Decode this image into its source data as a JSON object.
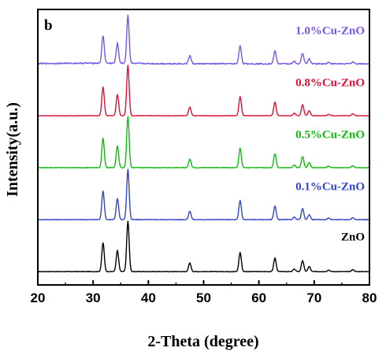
{
  "chart_data": {
    "type": "line",
    "panel_label": "b",
    "xlabel": "2-Theta (degree)",
    "ylabel": "Intensity(a.u.)",
    "xlim": [
      20,
      80
    ],
    "xticks": [
      20,
      30,
      40,
      50,
      60,
      70,
      80
    ],
    "y_ticks_shown": false,
    "grid": false,
    "legend": "inline labels above each trace",
    "series": [
      {
        "name": "ZnO",
        "color": "#000000",
        "offset": 0,
        "peak_scale": 1.0,
        "noise": 0.005
      },
      {
        "name": "0.1%Cu-ZnO",
        "color": "#3344cc",
        "offset": 1,
        "peak_scale": 1.0,
        "noise": 0.006
      },
      {
        "name": "0.5%Cu-ZnO",
        "color": "#11bb11",
        "offset": 2,
        "peak_scale": 1.02,
        "noise": 0.006
      },
      {
        "name": "0.8%Cu-ZnO",
        "color": "#dd1133",
        "offset": 3,
        "peak_scale": 1.0,
        "noise": 0.004
      },
      {
        "name": "1.0%Cu-ZnO",
        "color": "#7755ee",
        "offset": 4,
        "peak_scale": 0.95,
        "noise": 0.012
      }
    ],
    "peaks": [
      {
        "two_theta": 31.8,
        "rel_intensity": 0.57
      },
      {
        "two_theta": 34.4,
        "rel_intensity": 0.42
      },
      {
        "two_theta": 36.3,
        "rel_intensity": 1.0
      },
      {
        "two_theta": 47.5,
        "rel_intensity": 0.17
      },
      {
        "two_theta": 56.6,
        "rel_intensity": 0.38
      },
      {
        "two_theta": 62.9,
        "rel_intensity": 0.27
      },
      {
        "two_theta": 66.4,
        "rel_intensity": 0.05
      },
      {
        "two_theta": 67.9,
        "rel_intensity": 0.22
      },
      {
        "two_theta": 69.1,
        "rel_intensity": 0.1
      },
      {
        "two_theta": 72.6,
        "rel_intensity": 0.03
      },
      {
        "two_theta": 77.0,
        "rel_intensity": 0.04
      }
    ]
  }
}
